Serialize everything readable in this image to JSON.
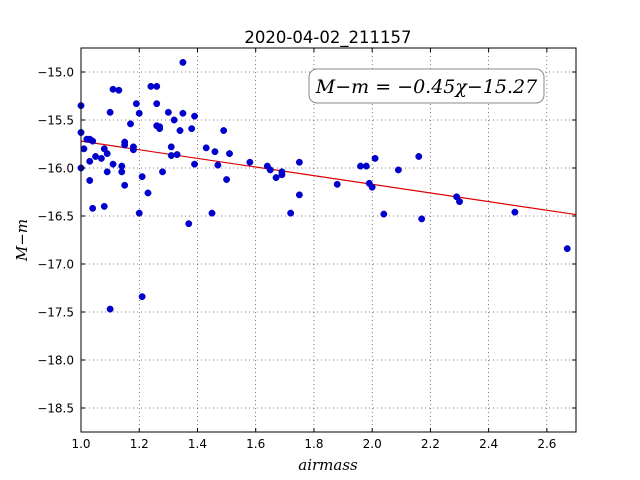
{
  "chart_data": {
    "type": "scatter",
    "title": "2020-04-02_211157",
    "xlabel": "airmass",
    "ylabel": "M−m",
    "xlim": [
      1.0,
      2.7
    ],
    "ylim": [
      -18.75,
      -14.75
    ],
    "y_inverted": true,
    "xticks": [
      1.0,
      1.2,
      1.4,
      1.6,
      1.8,
      2.0,
      2.2,
      2.4,
      2.6
    ],
    "xtick_labels": [
      "1.0",
      "1.2",
      "1.4",
      "1.6",
      "1.8",
      "2.0",
      "2.2",
      "2.4",
      "2.6"
    ],
    "yticks": [
      -15.0,
      -15.5,
      -16.0,
      -16.5,
      -17.0,
      -17.5,
      -18.0,
      -18.5
    ],
    "ytick_labels": [
      "−15.0",
      "−15.5",
      "−16.0",
      "−16.5",
      "−17.0",
      "−17.5",
      "−18.0",
      "−18.5"
    ],
    "grid": true,
    "annotation": "M−m = −0.45χ−15.27",
    "colors": {
      "points": "#0000cc",
      "fit": "#dd0000"
    },
    "fit": {
      "slope": -0.45,
      "intercept": -15.27,
      "x": [
        1.0,
        2.7
      ]
    },
    "points": [
      [
        1.0,
        -15.35
      ],
      [
        1.0,
        -15.63
      ],
      [
        1.0,
        -16.0
      ],
      [
        1.01,
        -15.8
      ],
      [
        1.02,
        -15.7
      ],
      [
        1.03,
        -15.7
      ],
      [
        1.03,
        -15.93
      ],
      [
        1.03,
        -16.13
      ],
      [
        1.04,
        -16.42
      ],
      [
        1.04,
        -15.72
      ],
      [
        1.05,
        -15.88
      ],
      [
        1.07,
        -15.9
      ],
      [
        1.08,
        -15.8
      ],
      [
        1.08,
        -16.4
      ],
      [
        1.09,
        -16.04
      ],
      [
        1.09,
        -15.85
      ],
      [
        1.1,
        -15.42
      ],
      [
        1.1,
        -17.47
      ],
      [
        1.11,
        -15.96
      ],
      [
        1.11,
        -15.18
      ],
      [
        1.13,
        -15.19
      ],
      [
        1.14,
        -15.98
      ],
      [
        1.14,
        -16.04
      ],
      [
        1.15,
        -16.18
      ],
      [
        1.15,
        -15.73
      ],
      [
        1.15,
        -15.76
      ],
      [
        1.17,
        -15.54
      ],
      [
        1.18,
        -15.78
      ],
      [
        1.18,
        -15.81
      ],
      [
        1.19,
        -15.33
      ],
      [
        1.2,
        -15.43
      ],
      [
        1.2,
        -16.47
      ],
      [
        1.21,
        -16.09
      ],
      [
        1.21,
        -17.34
      ],
      [
        1.23,
        -16.26
      ],
      [
        1.24,
        -15.15
      ],
      [
        1.26,
        -15.33
      ],
      [
        1.26,
        -15.15
      ],
      [
        1.26,
        -15.56
      ],
      [
        1.27,
        -15.59
      ],
      [
        1.27,
        -15.57
      ],
      [
        1.28,
        -16.04
      ],
      [
        1.3,
        -15.42
      ],
      [
        1.31,
        -15.87
      ],
      [
        1.31,
        -15.78
      ],
      [
        1.32,
        -15.5
      ],
      [
        1.33,
        -15.86
      ],
      [
        1.34,
        -15.61
      ],
      [
        1.35,
        -15.43
      ],
      [
        1.35,
        -14.9
      ],
      [
        1.37,
        -16.58
      ],
      [
        1.38,
        -15.59
      ],
      [
        1.39,
        -15.96
      ],
      [
        1.39,
        -15.46
      ],
      [
        1.43,
        -15.79
      ],
      [
        1.45,
        -16.47
      ],
      [
        1.46,
        -15.83
      ],
      [
        1.47,
        -15.97
      ],
      [
        1.49,
        -15.61
      ],
      [
        1.5,
        -16.12
      ],
      [
        1.51,
        -15.85
      ],
      [
        1.58,
        -15.94
      ],
      [
        1.64,
        -15.98
      ],
      [
        1.65,
        -16.02
      ],
      [
        1.67,
        -16.1
      ],
      [
        1.69,
        -16.07
      ],
      [
        1.69,
        -16.04
      ],
      [
        1.72,
        -16.47
      ],
      [
        1.75,
        -16.28
      ],
      [
        1.75,
        -15.94
      ],
      [
        1.88,
        -16.17
      ],
      [
        1.96,
        -15.98
      ],
      [
        1.98,
        -15.98
      ],
      [
        1.99,
        -16.16
      ],
      [
        2.0,
        -16.2
      ],
      [
        2.01,
        -15.9
      ],
      [
        2.04,
        -16.48
      ],
      [
        2.09,
        -16.02
      ],
      [
        2.16,
        -15.88
      ],
      [
        2.17,
        -16.53
      ],
      [
        2.29,
        -16.3
      ],
      [
        2.3,
        -16.35
      ],
      [
        2.49,
        -16.46
      ],
      [
        2.67,
        -16.84
      ]
    ]
  }
}
